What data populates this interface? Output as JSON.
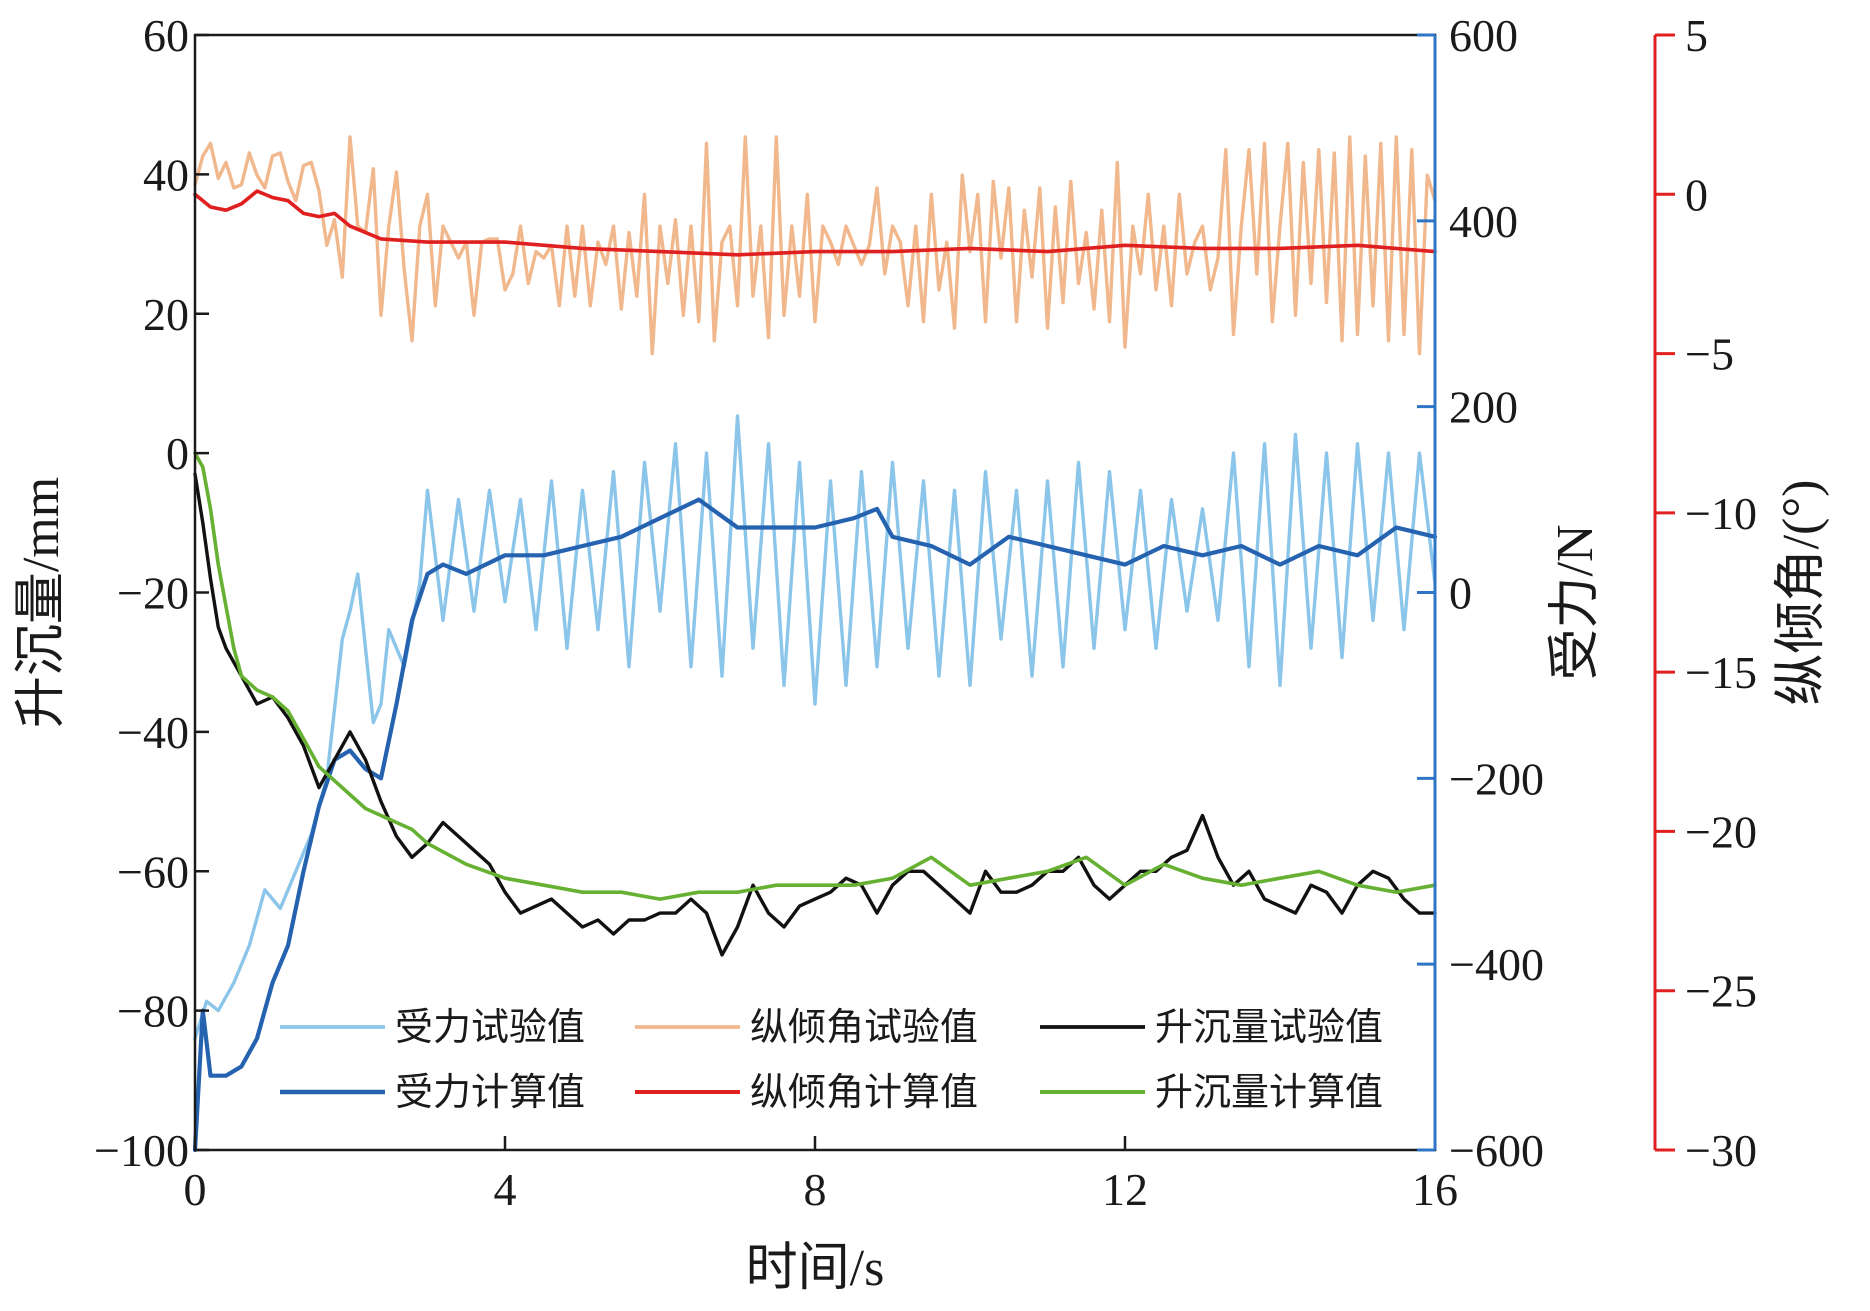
{
  "chart_data": {
    "type": "line",
    "xlabel": "时间/s",
    "x_ticks": [
      0,
      4,
      8,
      12,
      16
    ],
    "xlim": [
      0,
      16
    ],
    "axes": {
      "left": {
        "label": "升沉量/mm",
        "ylim": [
          -100,
          60
        ],
        "ticks": [
          -100,
          -80,
          -60,
          -40,
          -20,
          0,
          20,
          40,
          60
        ],
        "color": "#1a1a1a"
      },
      "right1": {
        "label": "受力/N",
        "ylim": [
          -600,
          600
        ],
        "ticks": [
          -600,
          -400,
          -200,
          0,
          200,
          400,
          600
        ],
        "color": "#2e75c6"
      },
      "right2": {
        "label": "纵倾角/(°)",
        "ylim": [
          -30,
          5
        ],
        "ticks": [
          -30,
          -25,
          -20,
          -15,
          -10,
          -5,
          0,
          5
        ],
        "color": "#e02020"
      }
    },
    "legend_position": "bottom-center",
    "series": [
      {
        "name": "受力试验值",
        "axis": "right1",
        "color": "#8cc5ea",
        "width": 3.4,
        "x": [
          0,
          0.15,
          0.3,
          0.5,
          0.7,
          0.9,
          1.1,
          1.3,
          1.5,
          1.7,
          1.9,
          2.0,
          2.1,
          2.2,
          2.3,
          2.4,
          2.5,
          2.7,
          2.9,
          3.0,
          3.2,
          3.4,
          3.6,
          3.8,
          4.0,
          4.2,
          4.4,
          4.6,
          4.8,
          5.0,
          5.2,
          5.4,
          5.6,
          5.8,
          6.0,
          6.2,
          6.4,
          6.6,
          6.8,
          7.0,
          7.2,
          7.4,
          7.6,
          7.8,
          8.0,
          8.2,
          8.4,
          8.6,
          8.8,
          9.0,
          9.2,
          9.4,
          9.6,
          9.8,
          10.0,
          10.2,
          10.4,
          10.6,
          10.8,
          11.0,
          11.2,
          11.4,
          11.6,
          11.8,
          12.0,
          12.2,
          12.4,
          12.6,
          12.8,
          13.0,
          13.2,
          13.4,
          13.6,
          13.8,
          14.0,
          14.2,
          14.4,
          14.6,
          14.8,
          15.0,
          15.2,
          15.4,
          15.6,
          15.8,
          16.0
        ],
        "values": [
          -480,
          -440,
          -450,
          -420,
          -380,
          -320,
          -340,
          -300,
          -260,
          -200,
          -50,
          -20,
          20,
          -60,
          -140,
          -120,
          -40,
          -80,
          10,
          110,
          -30,
          100,
          -20,
          110,
          -10,
          100,
          -40,
          120,
          -60,
          110,
          -40,
          130,
          -80,
          140,
          -20,
          160,
          -80,
          150,
          -90,
          190,
          -60,
          160,
          -100,
          140,
          -120,
          120,
          -100,
          130,
          -80,
          140,
          -60,
          120,
          -90,
          110,
          -100,
          130,
          -50,
          110,
          -90,
          120,
          -80,
          140,
          -60,
          130,
          -40,
          110,
          -60,
          100,
          -20,
          90,
          -30,
          150,
          -80,
          160,
          -100,
          170,
          -60,
          150,
          -70,
          160,
          -30,
          150,
          -40,
          150,
          10
        ]
      },
      {
        "name": "受力计算值",
        "axis": "right1",
        "color": "#2563b0",
        "width": 4.2,
        "x": [
          0,
          0.1,
          0.2,
          0.4,
          0.6,
          0.8,
          1.0,
          1.2,
          1.4,
          1.6,
          1.8,
          2.0,
          2.2,
          2.4,
          2.6,
          2.8,
          3.0,
          3.2,
          3.5,
          4.0,
          4.5,
          5.0,
          5.5,
          6.0,
          6.5,
          7.0,
          7.5,
          8.0,
          8.5,
          8.8,
          9.0,
          9.5,
          10.0,
          10.5,
          11.0,
          11.5,
          12.0,
          12.5,
          13.0,
          13.5,
          14.0,
          14.5,
          15.0,
          15.5,
          16.0
        ],
        "values": [
          -600,
          -450,
          -520,
          -520,
          -510,
          -480,
          -420,
          -380,
          -300,
          -230,
          -180,
          -170,
          -190,
          -200,
          -120,
          -30,
          20,
          30,
          20,
          40,
          40,
          50,
          60,
          80,
          100,
          70,
          70,
          70,
          80,
          90,
          60,
          50,
          30,
          60,
          50,
          40,
          30,
          50,
          40,
          50,
          30,
          50,
          40,
          70,
          60
        ]
      },
      {
        "name": "纵倾角试验值",
        "axis": "right2",
        "color": "#f0b88c",
        "width": 3.4,
        "x": [
          0,
          0.1,
          0.2,
          0.3,
          0.4,
          0.5,
          0.6,
          0.7,
          0.8,
          0.9,
          1.0,
          1.1,
          1.2,
          1.3,
          1.4,
          1.5,
          1.6,
          1.7,
          1.8,
          1.9,
          2.0,
          2.1,
          2.2,
          2.3,
          2.4,
          2.5,
          2.6,
          2.7,
          2.8,
          2.9,
          3.0,
          3.1,
          3.2,
          3.3,
          3.4,
          3.5,
          3.6,
          3.7,
          3.8,
          3.9,
          4.0,
          4.1,
          4.2,
          4.3,
          4.4,
          4.5,
          4.6,
          4.7,
          4.8,
          4.9,
          5.0,
          5.1,
          5.2,
          5.3,
          5.4,
          5.5,
          5.6,
          5.7,
          5.8,
          5.9,
          6.0,
          6.1,
          6.2,
          6.3,
          6.4,
          6.5,
          6.6,
          6.7,
          6.8,
          6.9,
          7.0,
          7.1,
          7.2,
          7.3,
          7.4,
          7.5,
          7.6,
          7.7,
          7.8,
          7.9,
          8.0,
          8.1,
          8.2,
          8.3,
          8.4,
          8.5,
          8.6,
          8.7,
          8.8,
          8.9,
          9.0,
          9.1,
          9.2,
          9.3,
          9.4,
          9.5,
          9.6,
          9.7,
          9.8,
          9.9,
          10.0,
          10.1,
          10.2,
          10.3,
          10.4,
          10.5,
          10.6,
          10.7,
          10.8,
          10.9,
          11.0,
          11.1,
          11.2,
          11.3,
          11.4,
          11.5,
          11.6,
          11.7,
          11.8,
          11.9,
          12.0,
          12.1,
          12.2,
          12.3,
          12.4,
          12.5,
          12.6,
          12.7,
          12.8,
          12.9,
          13.0,
          13.1,
          13.2,
          13.3,
          13.4,
          13.5,
          13.6,
          13.7,
          13.8,
          13.9,
          14.0,
          14.1,
          14.2,
          14.3,
          14.4,
          14.5,
          14.6,
          14.7,
          14.8,
          14.9,
          15.0,
          15.1,
          15.2,
          15.3,
          15.4,
          15.5,
          15.6,
          15.7,
          15.8,
          15.9,
          16.0
        ],
        "values": [
          0.3,
          1.2,
          1.6,
          0.5,
          1.0,
          0.2,
          0.3,
          1.3,
          0.6,
          0.2,
          1.2,
          1.3,
          0.4,
          -0.2,
          0.9,
          1.0,
          0.1,
          -1.6,
          -0.8,
          -2.6,
          1.8,
          -1.0,
          -1.2,
          0.8,
          -3.8,
          -1.0,
          0.7,
          -2.4,
          -4.6,
          -1.0,
          0.0,
          -3.5,
          -1.0,
          -1.5,
          -2.0,
          -1.5,
          -3.8,
          -1.5,
          -1.4,
          -1.4,
          -3.0,
          -2.5,
          -1.0,
          -2.8,
          -1.8,
          -2.0,
          -1.6,
          -3.5,
          -1.0,
          -3.2,
          -1.0,
          -3.5,
          -1.5,
          -2.2,
          -1.0,
          -3.6,
          -1.2,
          -3.2,
          0.0,
          -5.0,
          -1.0,
          -2.8,
          -0.8,
          -3.8,
          -1.0,
          -4.0,
          1.6,
          -4.6,
          -1.5,
          -1.0,
          -3.5,
          1.8,
          -3.2,
          -1.0,
          -4.5,
          1.8,
          -3.8,
          -1.0,
          -3.2,
          0.0,
          -4.0,
          -1.0,
          -1.5,
          -2.2,
          -1.0,
          -1.6,
          -2.2,
          -1.6,
          0.2,
          -2.5,
          -1.0,
          -1.5,
          -3.5,
          -1.0,
          -4.0,
          0.0,
          -3.0,
          -1.5,
          -4.2,
          0.6,
          -1.8,
          0.0,
          -4.0,
          0.4,
          -2.0,
          0.2,
          -4.0,
          -0.5,
          -2.6,
          0.2,
          -4.2,
          -0.4,
          -3.4,
          0.4,
          -2.8,
          -1.2,
          -3.6,
          -0.5,
          -4.0,
          1.0,
          -4.8,
          -1.0,
          -2.5,
          0.0,
          -3.0,
          -1.0,
          -3.5,
          0.0,
          -2.5,
          -1.5,
          -1.0,
          -3.0,
          -2.0,
          1.4,
          -4.4,
          -1.0,
          1.4,
          -2.5,
          1.6,
          -4.0,
          -1.0,
          1.6,
          -3.8,
          1.0,
          -2.8,
          1.4,
          -3.4,
          1.3,
          -4.6,
          1.8,
          -4.4,
          1.2,
          -3.5,
          1.6,
          -4.6,
          1.8,
          -4.4,
          1.4,
          -5.0,
          0.6,
          -0.2
        ]
      },
      {
        "name": "纵倾角计算值",
        "axis": "right2",
        "color": "#e02020",
        "width": 3.6,
        "x": [
          0,
          0.2,
          0.4,
          0.6,
          0.8,
          1.0,
          1.2,
          1.4,
          1.6,
          1.8,
          2.0,
          2.4,
          3.0,
          4.0,
          5.0,
          6.0,
          7.0,
          8.0,
          9.0,
          10.0,
          11.0,
          12.0,
          13.0,
          14.0,
          15.0,
          16.0
        ],
        "values": [
          0.0,
          -0.4,
          -0.5,
          -0.3,
          0.1,
          -0.1,
          -0.2,
          -0.6,
          -0.7,
          -0.6,
          -1.0,
          -1.4,
          -1.5,
          -1.5,
          -1.7,
          -1.8,
          -1.9,
          -1.8,
          -1.8,
          -1.7,
          -1.8,
          -1.6,
          -1.7,
          -1.7,
          -1.6,
          -1.8
        ]
      },
      {
        "name": "升沉量试验值",
        "axis": "left",
        "color": "#111111",
        "width": 3.4,
        "x": [
          0,
          0.1,
          0.2,
          0.3,
          0.4,
          0.6,
          0.8,
          1.0,
          1.2,
          1.4,
          1.6,
          1.8,
          2.0,
          2.2,
          2.4,
          2.6,
          2.8,
          3.0,
          3.2,
          3.4,
          3.6,
          3.8,
          4.0,
          4.2,
          4.4,
          4.6,
          4.8,
          5.0,
          5.2,
          5.4,
          5.6,
          5.8,
          6.0,
          6.2,
          6.4,
          6.6,
          6.8,
          7.0,
          7.2,
          7.4,
          7.6,
          7.8,
          8.0,
          8.2,
          8.4,
          8.6,
          8.8,
          9.0,
          9.2,
          9.4,
          9.6,
          9.8,
          10.0,
          10.2,
          10.4,
          10.6,
          10.8,
          11.0,
          11.2,
          11.4,
          11.6,
          11.8,
          12.0,
          12.2,
          12.4,
          12.6,
          12.8,
          13.0,
          13.2,
          13.4,
          13.6,
          13.8,
          14.0,
          14.2,
          14.4,
          14.6,
          14.8,
          15.0,
          15.2,
          15.4,
          15.6,
          15.8,
          16.0
        ],
        "values": [
          -3,
          -10,
          -18,
          -25,
          -28,
          -32,
          -36,
          -35,
          -38,
          -42,
          -48,
          -44,
          -40,
          -44,
          -50,
          -55,
          -58,
          -56,
          -53,
          -55,
          -57,
          -59,
          -63,
          -66,
          -65,
          -64,
          -66,
          -68,
          -67,
          -69,
          -67,
          -67,
          -66,
          -66,
          -64,
          -66,
          -72,
          -68,
          -62,
          -66,
          -68,
          -65,
          -64,
          -63,
          -61,
          -62,
          -66,
          -62,
          -60,
          -60,
          -62,
          -64,
          -66,
          -60,
          -63,
          -63,
          -62,
          -60,
          -60,
          -58,
          -62,
          -64,
          -62,
          -60,
          -60,
          -58,
          -57,
          -52,
          -58,
          -62,
          -60,
          -64,
          -65,
          -66,
          -62,
          -63,
          -66,
          -62,
          -60,
          -61,
          -64,
          -66,
          -66
        ]
      },
      {
        "name": "升沉量计算值",
        "axis": "left",
        "color": "#66b032",
        "width": 3.6,
        "x": [
          0,
          0.1,
          0.2,
          0.3,
          0.4,
          0.5,
          0.6,
          0.8,
          1.0,
          1.2,
          1.4,
          1.6,
          1.8,
          2.0,
          2.2,
          2.4,
          2.6,
          2.8,
          3.0,
          3.5,
          4.0,
          4.5,
          5.0,
          5.5,
          6.0,
          6.5,
          7.0,
          7.5,
          8.0,
          8.5,
          9.0,
          9.5,
          10.0,
          10.5,
          11.0,
          11.5,
          12.0,
          12.5,
          13.0,
          13.5,
          14.0,
          14.5,
          15.0,
          15.5,
          16.0
        ],
        "values": [
          0,
          -2,
          -8,
          -16,
          -22,
          -28,
          -32,
          -34,
          -35,
          -37,
          -41,
          -45,
          -47,
          -49,
          -51,
          -52,
          -53,
          -54,
          -56,
          -59,
          -61,
          -62,
          -63,
          -63,
          -64,
          -63,
          -63,
          -62,
          -62,
          -62,
          -61,
          -58,
          -62,
          -61,
          -60,
          -58,
          -62,
          -59,
          -61,
          -62,
          -61,
          -60,
          -62,
          -63,
          -62
        ]
      }
    ]
  }
}
